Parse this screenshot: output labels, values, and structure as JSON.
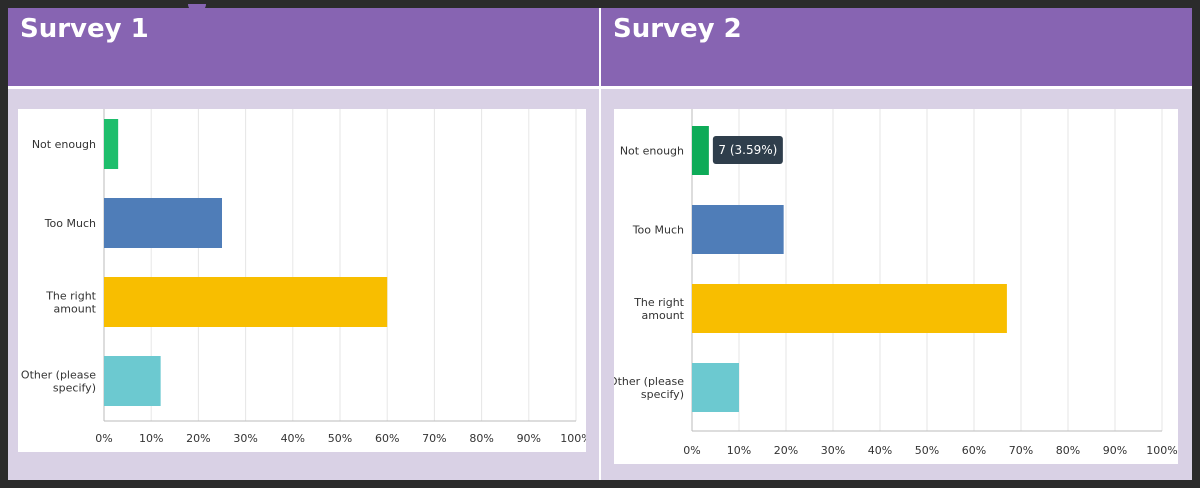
{
  "colors": {
    "header_bg": "#8764b2",
    "panel_bg": "#d9d1e5"
  },
  "panels": [
    {
      "title": "Survey 1"
    },
    {
      "title": "Survey 2"
    }
  ],
  "chart_data": [
    {
      "type": "bar",
      "orientation": "horizontal",
      "categories": [
        "Not enough",
        "Too Much",
        "The right amount",
        "Other (please specify)"
      ],
      "values": [
        3,
        25,
        60,
        12
      ],
      "colors": [
        "#1ebe6c",
        "#4f7db8",
        "#f8be00",
        "#6cc9d0"
      ],
      "xlim": [
        0,
        100
      ],
      "xticks": [
        "0%",
        "10%",
        "20%",
        "30%",
        "40%",
        "50%",
        "60%",
        "70%",
        "80%",
        "90%",
        "100%"
      ],
      "grid": true
    },
    {
      "type": "bar",
      "orientation": "horizontal",
      "categories": [
        "Not enough",
        "Too Much",
        "The right amount",
        "Other (please specify)"
      ],
      "values": [
        3.59,
        19.5,
        67,
        10
      ],
      "colors": [
        "#0eab58",
        "#4f7db8",
        "#f8be00",
        "#6cc9d0"
      ],
      "xlim": [
        0,
        100
      ],
      "xticks": [
        "0%",
        "10%",
        "20%",
        "30%",
        "40%",
        "50%",
        "60%",
        "70%",
        "80%",
        "90%",
        "100%"
      ],
      "grid": true,
      "tooltip": {
        "category_index": 0,
        "text": "7 (3.59%)"
      }
    }
  ]
}
